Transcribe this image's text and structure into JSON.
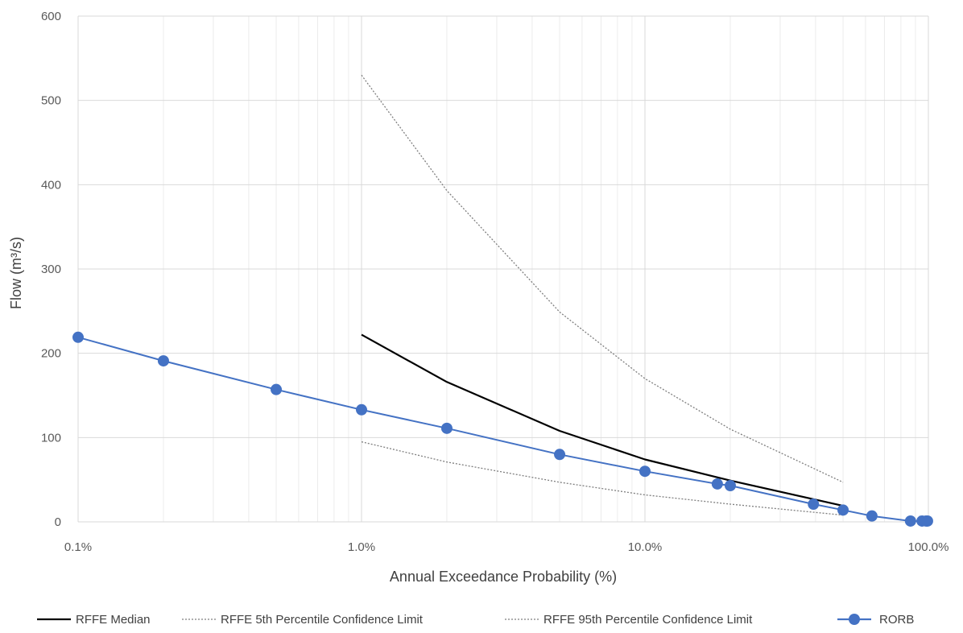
{
  "chart_data": {
    "type": "line",
    "title": "",
    "xlabel": "Annual Exceedance Probability (%)",
    "ylabel": "Flow (m³/s)",
    "x_scale": "log",
    "xlim": [
      0.1,
      100
    ],
    "ylim": [
      0,
      600
    ],
    "x_ticks": [
      0.1,
      1,
      10,
      100
    ],
    "x_tick_labels": [
      "0.1%",
      "1.0%",
      "10.0%",
      "100.0%"
    ],
    "y_ticks": [
      0,
      100,
      200,
      300,
      400,
      500,
      600
    ],
    "y_tick_labels": [
      "0",
      "100",
      "200",
      "300",
      "400",
      "500",
      "600"
    ],
    "grid": true,
    "legend_position": "bottom",
    "series": [
      {
        "name": "RFFE Median",
        "style": "solid",
        "color": "#000000",
        "markers": false,
        "x": [
          1,
          2,
          5,
          10,
          20,
          50
        ],
        "y": [
          222,
          166,
          108,
          74,
          49,
          19
        ]
      },
      {
        "name": "RFFE 5th Percentile Confidence Limit",
        "style": "dotted",
        "color": "#7f7f7f",
        "markers": false,
        "x": [
          1,
          2,
          5,
          10,
          20,
          50
        ],
        "y": [
          95,
          71,
          47,
          32,
          21,
          8
        ]
      },
      {
        "name": "RFFE 95th Percentile Confidence Limit",
        "style": "dotted",
        "color": "#7f7f7f",
        "markers": false,
        "x": [
          1,
          2,
          5,
          10,
          20,
          50
        ],
        "y": [
          530,
          393,
          249,
          170,
          110,
          47
        ]
      },
      {
        "name": "RORB",
        "style": "solid",
        "color": "#4472c4",
        "markers": true,
        "x": [
          0.1,
          0.2,
          0.5,
          1,
          2,
          5,
          10,
          18,
          20,
          39.3,
          50,
          63.2,
          86.5,
          95,
          98.2,
          99.3
        ],
        "y": [
          219,
          191,
          157,
          133,
          111,
          80,
          60,
          45,
          43,
          21,
          14,
          7,
          1,
          1,
          1,
          1
        ]
      }
    ]
  },
  "colors": {
    "grid_major": "#d9d9d9",
    "grid_minor": "#ececec",
    "rorb": "#4472c4"
  }
}
